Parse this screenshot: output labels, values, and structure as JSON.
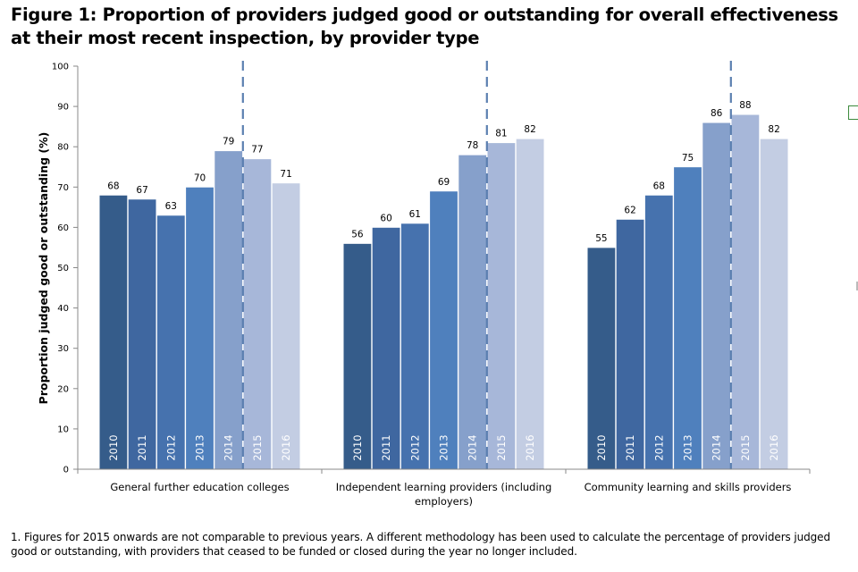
{
  "chart_data": {
    "type": "bar",
    "title": "Figure 1: Proportion of providers judged good or outstanding for overall effectiveness at their most recent inspection, by provider type",
    "xlabel": "",
    "ylabel": "Proportion judged good or outstanding (%)",
    "ylim": [
      0,
      100
    ],
    "yticks": [
      "0",
      "10",
      "20",
      "30",
      "40",
      "50",
      "60",
      "70",
      "80",
      "90",
      "100"
    ],
    "grid": false,
    "legend": "none",
    "categories": [
      "General further education colleges",
      "Independent learning providers (including employers)",
      "Community learning and skills providers"
    ],
    "category_lines": [
      [
        "General further education colleges"
      ],
      [
        "Independent learning providers (including",
        "employers)"
      ],
      [
        "Community learning and skills providers"
      ]
    ],
    "series": [
      {
        "name": "2010",
        "color": "#355c8a",
        "values": [
          68,
          56,
          55
        ]
      },
      {
        "name": "2011",
        "color": "#3f67a0",
        "values": [
          67,
          60,
          62
        ]
      },
      {
        "name": "2012",
        "color": "#4672ae",
        "values": [
          63,
          61,
          68
        ]
      },
      {
        "name": "2013",
        "color": "#4f80bd",
        "values": [
          70,
          69,
          75
        ]
      },
      {
        "name": "2014",
        "color": "#86a0cb",
        "values": [
          79,
          78,
          86
        ]
      },
      {
        "name": "2015",
        "color": "#a7b7d9",
        "values": [
          77,
          81,
          88
        ]
      },
      {
        "name": "2016",
        "color": "#c3cde3",
        "values": [
          71,
          82,
          82
        ]
      }
    ],
    "dashed_line_before": "2015",
    "dashed_line_color": "#5b7fb0"
  },
  "footnote": "1. Figures for 2015 onwards are not comparable to previous years. A different methodology has been used to calculate the percentage of providers judged good or outstanding, with providers that ceased to be funded or closed during the year no longer included."
}
